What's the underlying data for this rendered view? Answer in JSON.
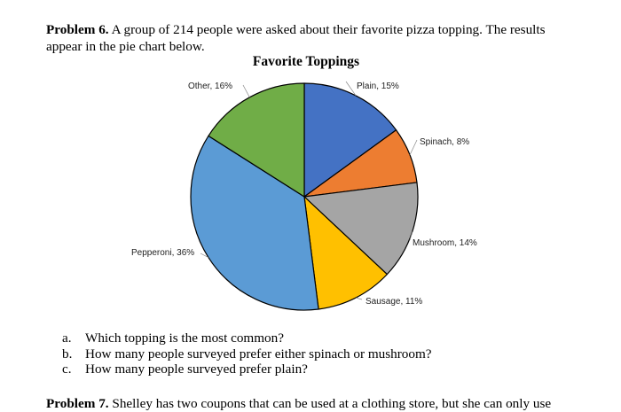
{
  "problem": {
    "number": "Problem 6.",
    "text": "A group of 214 people were asked about their favorite pizza topping. The results appear in the pie chart below."
  },
  "chart_data": {
    "type": "pie",
    "title": "Favorite Toppings",
    "slices": [
      {
        "label": "Plain",
        "percent_label": "15%",
        "value": 15,
        "color": "#4472c4"
      },
      {
        "label": "Spinach",
        "percent_label": "8%",
        "value": 8,
        "color": "#ed7d31"
      },
      {
        "label": "Mushroom",
        "percent_label": "14%",
        "value": 14,
        "color": "#a5a5a5"
      },
      {
        "label": "Sausage",
        "percent_label": "11%",
        "value": 11,
        "color": "#ffc000"
      },
      {
        "label": "Pepperoni",
        "percent_label": "36%",
        "value": 36,
        "color": "#5b9bd5"
      },
      {
        "label": "Other",
        "percent_label": "16%",
        "value": 16,
        "color": "#70ad47"
      }
    ]
  },
  "questions": [
    {
      "marker": "a.",
      "text": "Which topping is the most common?"
    },
    {
      "marker": "b.",
      "text": "How many people surveyed prefer either spinach or mushroom?"
    },
    {
      "marker": "c.",
      "text": "How many people surveyed prefer plain?"
    }
  ],
  "next_problem": {
    "number": "Problem 7.",
    "text": "Shelley has two coupons that can be used at a clothing store, but she can only use"
  }
}
